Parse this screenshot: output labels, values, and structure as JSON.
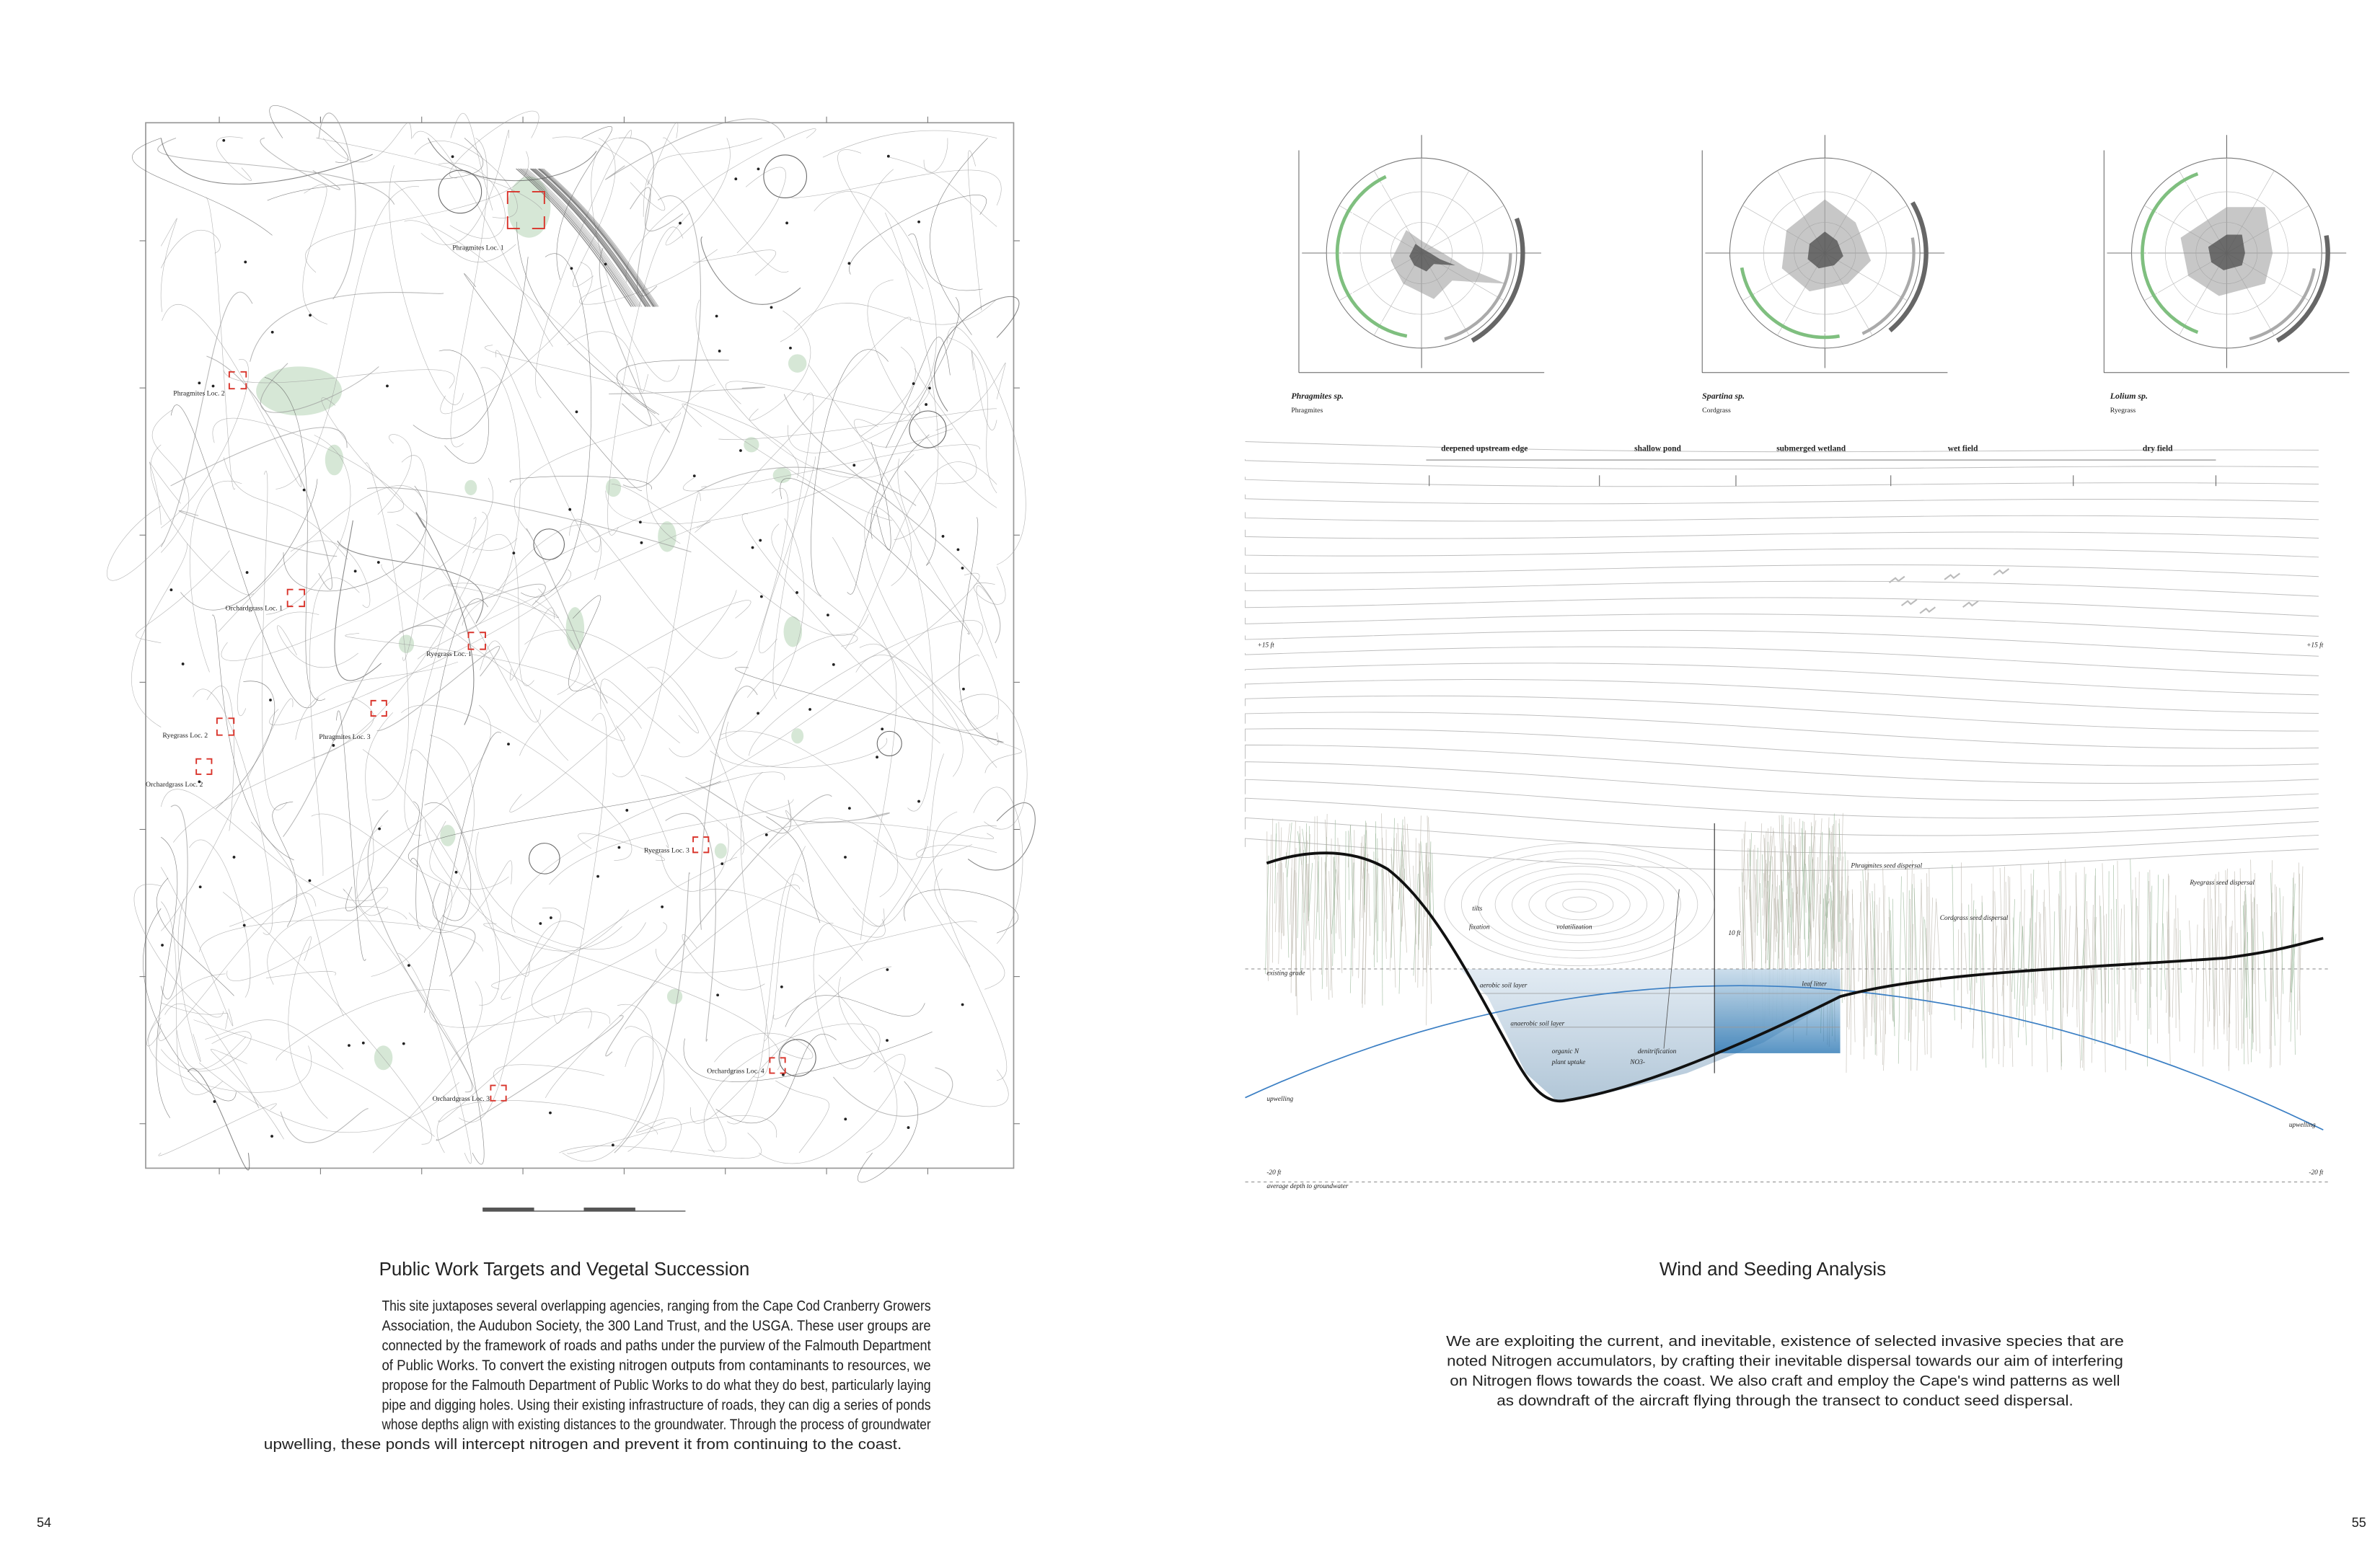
{
  "map": {
    "labels": [
      "Phragmites Loc. 1",
      "Phragmites Loc. 2",
      "Orchardgrass Loc. 1",
      "Ryegrass Loc. 1",
      "Ryegrass Loc. 2",
      "Phragmites Loc. 3",
      "Orchardgrass Loc. 2",
      "Ryegrass Loc. 3",
      "Orchardgrass Loc. 4",
      "Orchardgrass Loc. 3"
    ]
  },
  "left": {
    "title": "Public Work Targets and Vegetal Succession",
    "paragraph": [
      "This site juxtaposes several overlapping agencies, ranging from the Cape Cod Cranberry Growers",
      "Association, the Audubon Society, the 300 Land Trust, and the USGA.  These user groups are",
      "connected by the framework of roads and paths under the purview of the Falmouth Department",
      "of Public Works.  To convert the existing nitrogen outputs from contaminants to resources, we",
      "propose for the Falmouth Department of Public Works to do what they do best, particularly laying",
      "pipe and digging holes.  Using their existing infrastructure of roads, they can dig a series of ponds",
      "whose depths align with existing distances to the groundwater. Through the process of groundwater",
      "upwelling, these ponds will intercept nitrogen and prevent it from continuing to the coast."
    ]
  },
  "roses": [
    {
      "species": "Phragmites sp.",
      "common": "Phragmites"
    },
    {
      "species": "Spartina sp.",
      "common": "Cordgrass"
    },
    {
      "species": "Lolium sp.",
      "common": "Ryegrass"
    }
  ],
  "section": {
    "zones": [
      "deepened upstream edge",
      "shallow pond",
      "submerged wetland",
      "wet field",
      "dry field"
    ],
    "annotations": [
      "+15 ft",
      "+15 ft",
      "existing grade",
      "upwelling",
      "upwelling",
      "-20 ft",
      "-20 ft",
      "average depth to groundwater",
      "10 ft",
      "Phragmites seed dispersal",
      "Cordgrass seed dispersal",
      "Ryegrass seed dispersal",
      "tilts",
      "fixation",
      "volatilization",
      "aerobic soil layer",
      "anaerobic soil layer",
      "organic N",
      "plant uptake",
      "denitrification",
      "NO3-",
      "leaf litter"
    ]
  },
  "right": {
    "title": "Wind and Seeding Analysis",
    "paragraph": [
      "We are exploiting the current, and inevitable, existence of selected invasive  species that are",
      "noted Nitrogen accumulators, by crafting their inevitable dispersal towards our aim of interfering",
      "on Nitrogen flows towards the coast. We also craft and employ the Cape's wind patterns as well",
      "as downdraft of the aircraft flying through the transect to conduct seed dispersal."
    ]
  },
  "page_numbers": [
    "54",
    "55"
  ]
}
